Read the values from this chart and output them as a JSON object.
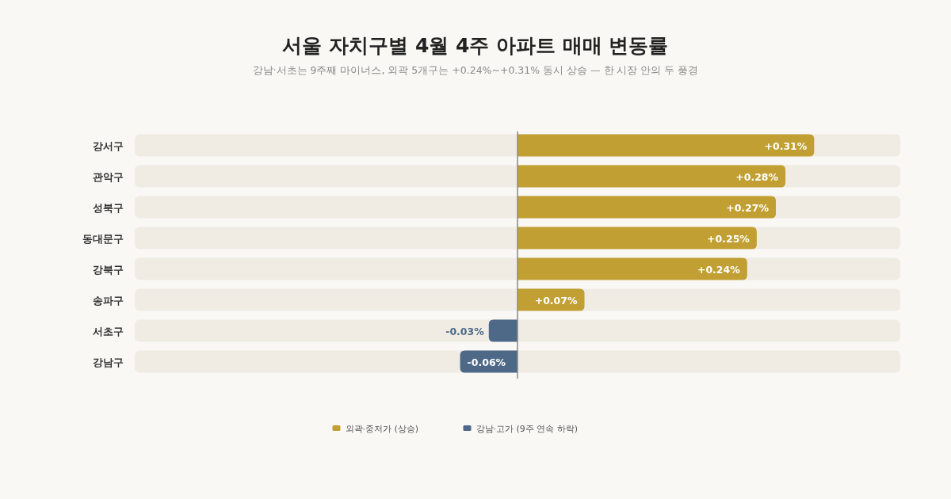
{
  "chart_data": {
    "type": "bar",
    "orientation": "horizontal",
    "title": "서울 자치구별 4월 4주 아파트 매매 변동률",
    "subtitle": "강남·서초는 9주째 마이너스, 외곽 5개구는 +0.24%~+0.31% 동시 상승 — 한 시장 안의 두 풍경",
    "categories": [
      "강서구",
      "관악구",
      "성북구",
      "동대문구",
      "강북구",
      "송파구",
      "서초구",
      "강남구"
    ],
    "xlim": [
      -0.4,
      0.4
    ],
    "tick_labels": "y",
    "legend": "bottom",
    "series": [
      {
        "name": "외곽·중저가 (상승)",
        "color": "#c29f32",
        "values": [
          0.31,
          0.28,
          0.27,
          0.25,
          0.24,
          0.07,
          null,
          null
        ],
        "value_labels": [
          "+0.31%",
          "+0.28%",
          "+0.27%",
          "+0.25%",
          "+0.24%",
          "+0.07%",
          null,
          null
        ]
      },
      {
        "name": "강남·고가 (9주 연속 하락)",
        "color": "#4d6987",
        "values": [
          null,
          null,
          null,
          null,
          null,
          null,
          -0.03,
          -0.06
        ],
        "value_labels": [
          null,
          null,
          null,
          null,
          null,
          null,
          "-0.03%",
          "-0.06%"
        ]
      }
    ]
  }
}
